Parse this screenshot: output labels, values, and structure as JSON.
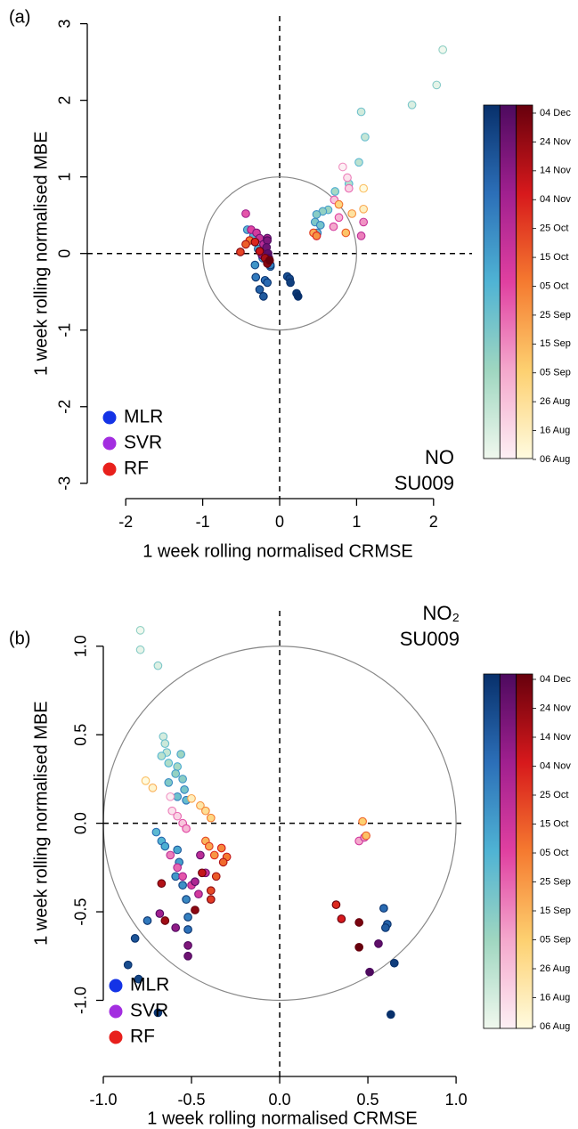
{
  "chart_data": [
    {
      "type": "scatter",
      "panel_label": "(a)",
      "xlabel": "1 week rolling normalised CRMSE",
      "ylabel": "1 week rolling normalised MBE",
      "annotation": [
        "NO",
        "SU009"
      ],
      "xlim": [
        -2.5,
        2.5
      ],
      "ylim": [
        -3.2,
        3.1
      ],
      "xticks": [
        -2,
        -1,
        0,
        1,
        2
      ],
      "yticks": [
        -3,
        -2,
        -1,
        0,
        1,
        2,
        3
      ],
      "circle_radius": 1,
      "legend": "bottom-left",
      "colorbar": [
        "06 Aug",
        "16 Aug",
        "26 Aug",
        "05 Sep",
        "15 Sep",
        "25 Sep",
        "05 Oct",
        "15 Oct",
        "25 Oct",
        "04 Nov",
        "14 Nov",
        "24 Nov",
        "04 Dec"
      ],
      "series": [
        {
          "name": "MLR",
          "color": "#1433e6",
          "colormap": [
            "#f0f8ee",
            "#9fd6c0",
            "#4fb3d4",
            "#2c6fb8",
            "#08306b"
          ],
          "x": [
            2.12,
            2.04,
            1.72,
            1.06,
            1.11,
            1.03,
            0.9,
            0.72,
            0.63,
            0.56,
            0.48,
            0.46,
            0.53,
            0.49,
            -0.42,
            -0.34,
            -0.28,
            -0.22,
            -0.16,
            -0.32,
            -0.12,
            -0.12,
            -0.31,
            -0.19,
            -0.16,
            -0.26,
            -0.21,
            0.1,
            0.13,
            0.14,
            0.22,
            0.24
          ],
          "y": [
            2.66,
            2.2,
            1.94,
            1.85,
            1.52,
            1.19,
            0.91,
            0.81,
            0.57,
            0.55,
            0.51,
            0.41,
            0.37,
            0.27,
            0.31,
            0.23,
            0.06,
            -0.06,
            -0.12,
            -0.15,
            -0.17,
            -0.15,
            -0.31,
            -0.35,
            -0.38,
            -0.47,
            -0.56,
            -0.3,
            -0.33,
            -0.38,
            -0.52,
            -0.56
          ]
        },
        {
          "name": "SVR",
          "color": "#a32ee0",
          "colormap": [
            "#fdf0f4",
            "#f4a8cc",
            "#e040a0",
            "#a0208f",
            "#4d0a5e"
          ],
          "x": [
            0.82,
            0.88,
            0.9,
            0.71,
            0.77,
            0.7,
            1.09,
            1.06,
            0.48,
            -0.44,
            -0.37,
            -0.3,
            -0.26,
            -0.21,
            -0.16,
            -0.19,
            -0.23,
            -0.16,
            -0.17,
            -0.15,
            -0.14
          ],
          "y": [
            1.13,
            0.99,
            0.85,
            0.7,
            0.47,
            0.35,
            0.41,
            0.23,
            0.23,
            0.52,
            0.31,
            0.27,
            0.2,
            0.12,
            0.2,
            0.03,
            -0.02,
            0.17,
            0.08,
            0.0,
            -0.06
          ]
        },
        {
          "name": "RF",
          "color": "#e8201c",
          "colormap": [
            "#fffbe0",
            "#fdd070",
            "#f57a30",
            "#d7191c",
            "#67000d"
          ],
          "x": [
            1.09,
            1.09,
            0.94,
            0.77,
            0.86,
            0.44,
            0.48,
            -0.39,
            -0.44,
            -0.51,
            -0.32,
            -0.26,
            -0.19,
            -0.16,
            -0.13
          ],
          "y": [
            0.85,
            0.58,
            0.52,
            0.64,
            0.27,
            0.27,
            0.23,
            0.17,
            0.12,
            0.02,
            0.15,
            0.03,
            -0.06,
            -0.13,
            -0.09
          ]
        }
      ]
    },
    {
      "type": "scatter",
      "panel_label": "(b)",
      "xlabel": "1 week rolling normalised CRMSE",
      "ylabel": "1 week rolling normalised MBE",
      "annotation": [
        "NO₂",
        "SU009"
      ],
      "xlim": [
        -1,
        1.05
      ],
      "ylim": [
        -1.43,
        1.2
      ],
      "xticks": [
        {
          "value": -1,
          "label": "-1.0"
        },
        {
          "value": -0.5,
          "label": "-0.5"
        },
        {
          "value": 0,
          "label": "0.0"
        },
        0.5,
        {
          "value": 1,
          "label": "1.0"
        }
      ],
      "yticks": [
        {
          "value": -1,
          "label": "-1.0"
        },
        {
          "value": -0.5,
          "label": "-0.5"
        },
        {
          "value": 0,
          "label": "0.0"
        },
        0.5,
        {
          "value": 1,
          "label": "1.0"
        }
      ],
      "circle_radius": 1,
      "legend": "bottom-left",
      "colorbar": [
        "06 Aug",
        "16 Aug",
        "26 Aug",
        "05 Sep",
        "15 Sep",
        "25 Sep",
        "05 Oct",
        "15 Oct",
        "25 Oct",
        "04 Nov",
        "14 Nov",
        "24 Nov",
        "04 Dec"
      ],
      "series": [
        {
          "name": "MLR",
          "color": "#1433e6",
          "colormap": [
            "#f0f8ee",
            "#9fd6c0",
            "#4fb3d4",
            "#2c6fb8",
            "#08306b"
          ],
          "x": [
            -0.79,
            -0.79,
            -0.69,
            -0.66,
            -0.65,
            -0.64,
            -0.67,
            -0.63,
            -0.58,
            -0.56,
            -0.59,
            -0.55,
            -0.63,
            -0.54,
            -0.58,
            -0.53,
            -0.7,
            -0.67,
            -0.65,
            -0.58,
            -0.57,
            -0.59,
            -0.55,
            -0.53,
            -0.52,
            -0.75,
            -0.52,
            0.59,
            0.61,
            0.6,
            -0.82,
            -0.86,
            -0.8,
            0.65,
            -0.69,
            0.63
          ],
          "y": [
            1.09,
            0.98,
            0.89,
            0.49,
            0.45,
            0.4,
            0.38,
            0.34,
            0.32,
            0.39,
            0.28,
            0.25,
            0.23,
            0.19,
            0.15,
            0.13,
            -0.05,
            -0.1,
            -0.13,
            -0.15,
            -0.22,
            -0.3,
            -0.35,
            -0.43,
            -0.53,
            -0.55,
            -0.6,
            -0.48,
            -0.57,
            -0.59,
            -0.65,
            -0.8,
            -0.88,
            -0.79,
            -1.07,
            -1.08
          ]
        },
        {
          "name": "SVR",
          "color": "#a32ee0",
          "colormap": [
            "#fdf0f4",
            "#f4a8cc",
            "#e040a0",
            "#a0208f",
            "#4d0a5e"
          ],
          "x": [
            -0.62,
            -0.61,
            -0.58,
            -0.55,
            -0.53,
            0.45,
            0.48,
            -0.62,
            -0.58,
            -0.55,
            -0.5,
            -0.46,
            -0.42,
            -0.45,
            -0.48,
            -0.68,
            -0.59,
            -0.52,
            -0.52,
            0.56,
            0.51
          ],
          "y": [
            0.15,
            0.07,
            0.04,
            0.0,
            -0.03,
            -0.1,
            -0.08,
            -0.18,
            -0.25,
            -0.3,
            -0.35,
            -0.4,
            -0.28,
            -0.18,
            -0.33,
            -0.51,
            -0.59,
            -0.69,
            -0.75,
            -0.68,
            -0.84
          ]
        },
        {
          "name": "RF",
          "color": "#e8201c",
          "colormap": [
            "#fffbe0",
            "#fdd070",
            "#f57a30",
            "#d7191c",
            "#67000d"
          ],
          "x": [
            -0.76,
            -0.72,
            -0.5,
            -0.45,
            -0.42,
            -0.39,
            0.47,
            0.49,
            -0.42,
            -0.4,
            -0.37,
            -0.33,
            -0.3,
            -0.32,
            -0.36,
            -0.39,
            -0.39,
            0.32,
            0.35,
            -0.44,
            -0.67,
            -0.65,
            -0.48,
            0.45,
            0.45
          ],
          "y": [
            0.24,
            0.2,
            0.14,
            0.1,
            0.07,
            0.03,
            0.01,
            -0.07,
            -0.1,
            -0.13,
            -0.18,
            -0.14,
            -0.19,
            -0.22,
            -0.3,
            -0.38,
            -0.43,
            -0.46,
            -0.54,
            -0.28,
            -0.34,
            -0.55,
            -0.49,
            -0.56,
            -0.7
          ]
        }
      ]
    }
  ]
}
